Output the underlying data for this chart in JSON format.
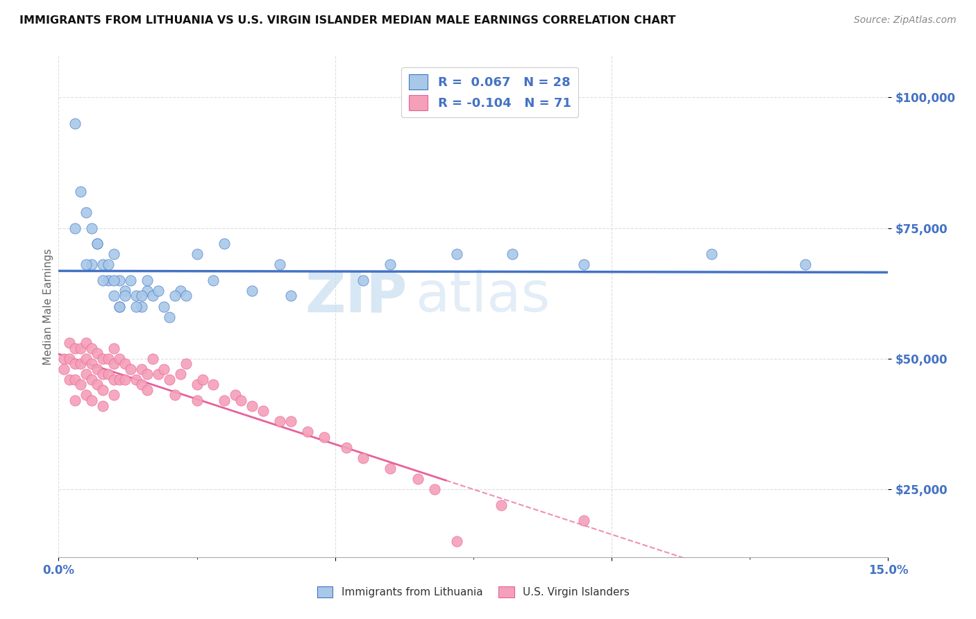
{
  "title": "IMMIGRANTS FROM LITHUANIA VS U.S. VIRGIN ISLANDER MEDIAN MALE EARNINGS CORRELATION CHART",
  "source": "Source: ZipAtlas.com",
  "ylabel": "Median Male Earnings",
  "xlim": [
    0.0,
    0.15
  ],
  "ylim": [
    12000,
    108000
  ],
  "yticks": [
    25000,
    50000,
    75000,
    100000
  ],
  "ytick_labels": [
    "$25,000",
    "$50,000",
    "$75,000",
    "$100,000"
  ],
  "xticks": [
    0.0,
    0.05,
    0.1,
    0.15
  ],
  "xtick_labels": [
    "0.0%",
    "",
    "",
    "15.0%"
  ],
  "color_blue": "#a8c8e8",
  "color_pink": "#f4a0b8",
  "color_blue_dark": "#4472c4",
  "color_pink_dark": "#e8609a",
  "watermark_zip": "ZIP",
  "watermark_atlas": "atlas",
  "legend_label1": "Immigrants from Lithuania",
  "legend_label2": "U.S. Virgin Islanders",
  "blue_scatter_x": [
    0.003,
    0.004,
    0.005,
    0.006,
    0.006,
    0.007,
    0.008,
    0.009,
    0.01,
    0.01,
    0.011,
    0.011,
    0.012,
    0.013,
    0.014,
    0.015,
    0.016,
    0.017,
    0.02,
    0.022,
    0.025,
    0.03,
    0.04,
    0.055,
    0.072,
    0.135,
    0.003,
    0.005,
    0.007,
    0.008,
    0.009,
    0.01,
    0.011,
    0.012,
    0.014,
    0.015,
    0.016,
    0.018,
    0.019,
    0.021,
    0.023,
    0.028,
    0.035,
    0.042,
    0.06,
    0.082,
    0.095,
    0.118
  ],
  "blue_scatter_y": [
    95000,
    82000,
    78000,
    75000,
    68000,
    72000,
    68000,
    65000,
    70000,
    62000,
    65000,
    60000,
    63000,
    65000,
    62000,
    60000,
    63000,
    62000,
    58000,
    63000,
    70000,
    72000,
    68000,
    65000,
    70000,
    68000,
    75000,
    68000,
    72000,
    65000,
    68000,
    65000,
    60000,
    62000,
    60000,
    62000,
    65000,
    63000,
    60000,
    62000,
    62000,
    65000,
    63000,
    62000,
    68000,
    70000,
    68000,
    70000
  ],
  "pink_scatter_x": [
    0.001,
    0.001,
    0.002,
    0.002,
    0.002,
    0.003,
    0.003,
    0.003,
    0.003,
    0.004,
    0.004,
    0.004,
    0.005,
    0.005,
    0.005,
    0.005,
    0.006,
    0.006,
    0.006,
    0.006,
    0.007,
    0.007,
    0.007,
    0.008,
    0.008,
    0.008,
    0.008,
    0.009,
    0.009,
    0.01,
    0.01,
    0.01,
    0.01,
    0.011,
    0.011,
    0.012,
    0.012,
    0.013,
    0.014,
    0.015,
    0.015,
    0.016,
    0.016,
    0.017,
    0.018,
    0.019,
    0.02,
    0.021,
    0.022,
    0.023,
    0.025,
    0.025,
    0.026,
    0.028,
    0.03,
    0.032,
    0.033,
    0.035,
    0.037,
    0.04,
    0.042,
    0.045,
    0.048,
    0.052,
    0.055,
    0.06,
    0.065,
    0.068,
    0.072,
    0.08,
    0.095
  ],
  "pink_scatter_y": [
    50000,
    48000,
    53000,
    50000,
    46000,
    52000,
    49000,
    46000,
    42000,
    52000,
    49000,
    45000,
    53000,
    50000,
    47000,
    43000,
    52000,
    49000,
    46000,
    42000,
    51000,
    48000,
    45000,
    50000,
    47000,
    44000,
    41000,
    50000,
    47000,
    52000,
    49000,
    46000,
    43000,
    50000,
    46000,
    49000,
    46000,
    48000,
    46000,
    48000,
    45000,
    47000,
    44000,
    50000,
    47000,
    48000,
    46000,
    43000,
    47000,
    49000,
    45000,
    42000,
    46000,
    45000,
    42000,
    43000,
    42000,
    41000,
    40000,
    38000,
    38000,
    36000,
    35000,
    33000,
    31000,
    29000,
    27000,
    25000,
    15000,
    22000,
    19000
  ]
}
